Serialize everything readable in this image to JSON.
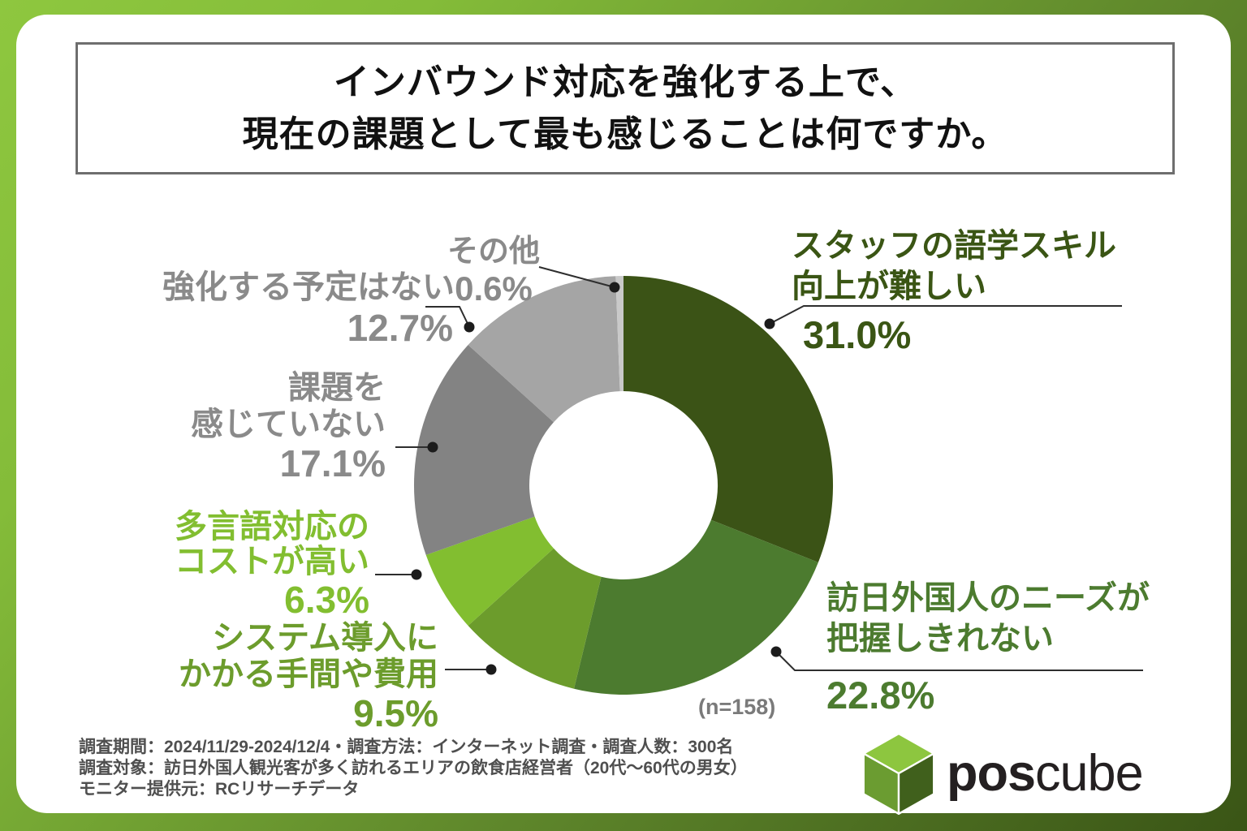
{
  "title": {
    "line1": "インバウンド対応を強化する上で、",
    "line2": "現在の課題として最も感じることは何ですか。"
  },
  "chart_data": {
    "type": "pie",
    "subtype": "donut",
    "start_position": "12-o-clock",
    "direction": "clockwise",
    "n_label": "(n=158)",
    "total_pct": 100.0,
    "segments": [
      {
        "label": "スタッフの語学スキル向上が難しい",
        "label_lines": [
          "スタッフの語学スキル",
          "向上が難しい"
        ],
        "value": 31.0,
        "pct_label": "31.0%",
        "color": "#3b5316",
        "label_color": "#3a5514"
      },
      {
        "label": "訪日外国人のニーズが把握しきれない",
        "label_lines": [
          "訪日外国人のニーズが",
          "把握しきれない"
        ],
        "value": 22.8,
        "pct_label": "22.8%",
        "color": "#4c7b2f",
        "label_color": "#4c7b2f"
      },
      {
        "label": "システム導入にかかる手間や費用",
        "label_lines": [
          "システム導入に",
          "かかる手間や費用"
        ],
        "value": 9.5,
        "pct_label": "9.5%",
        "color": "#6c9c2c",
        "label_color": "#6c9c2c"
      },
      {
        "label": "多言語対応のコストが高い",
        "label_lines": [
          "多言語対応の",
          "コストが高い"
        ],
        "value": 6.3,
        "pct_label": "6.3%",
        "color": "#82be30",
        "label_color": "#82be30"
      },
      {
        "label": "課題を感じていない",
        "label_lines": [
          "課題を",
          "感じていない"
        ],
        "value": 17.1,
        "pct_label": "17.1%",
        "color": "#838383",
        "label_color": "#8a8a8a"
      },
      {
        "label": "強化する予定はない",
        "label_lines": [
          "強化する予定はない"
        ],
        "value": 12.7,
        "pct_label": "12.7%",
        "color": "#a5a5a5",
        "label_color": "#8a8a8a"
      },
      {
        "label": "その他",
        "label_lines": [
          "その他"
        ],
        "value": 0.6,
        "pct_label": "0.6%",
        "color": "#c9c9c9",
        "label_color": "#8a8a8a"
      }
    ]
  },
  "footer": {
    "line1": "調査期間：2024/11/29-2024/12/4・調査方法：インターネット調査・調査人数：300名",
    "line2": "調査対象：訪日外国人観光客が多く訪れるエリアの飲食店経営者（20代～60代の男女）",
    "line3": "モニター提供元：RCリサーチデータ"
  },
  "logo": {
    "text_bold": "pos",
    "text_regular": "cube",
    "cube_top_color": "#8dc63f",
    "cube_left_color": "#6b9c31",
    "cube_right_color": "#40601c"
  },
  "brand": {
    "frame_gradient_start": "#8ec73f",
    "frame_gradient_end": "#3a5516",
    "title_border_color": "#6e6e6e"
  }
}
